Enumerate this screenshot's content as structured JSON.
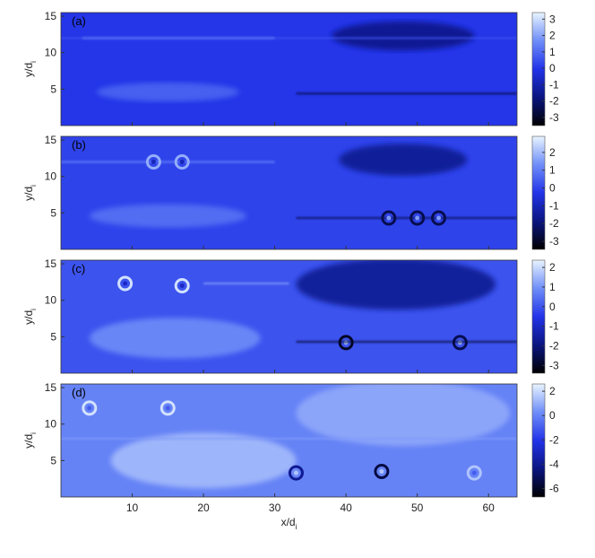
{
  "chart_data": [
    {
      "type": "heatmap",
      "panel_label": "(a)",
      "ylabel": {
        "text": "y/d",
        "sub": "i"
      },
      "xlim": [
        0,
        64
      ],
      "xticks": [
        10,
        20,
        30,
        40,
        50,
        60
      ],
      "ylim": [
        0,
        15.5
      ],
      "yticks": [
        5,
        10,
        15
      ],
      "clim": [
        -3.5,
        3.4
      ],
      "cticks": [
        -3,
        -2,
        -1,
        0,
        1,
        2,
        3
      ],
      "colormap": [
        "#000000",
        "#0a1580",
        "#2233e8",
        "#6f8ef8",
        "#e8f4ff"
      ]
    },
    {
      "type": "heatmap",
      "panel_label": "(b)",
      "ylabel": {
        "text": "y/d",
        "sub": "i"
      },
      "xlim": [
        0,
        64
      ],
      "xticks": [
        10,
        20,
        30,
        40,
        50,
        60
      ],
      "ylim": [
        0,
        15.5
      ],
      "yticks": [
        5,
        10,
        15
      ],
      "clim": [
        -3.45,
        2.9
      ],
      "cticks": [
        -3,
        -2,
        -1,
        0,
        1,
        2
      ],
      "colormap": [
        "#000000",
        "#0a1580",
        "#2233e8",
        "#6f8ef8",
        "#e8f4ff"
      ]
    },
    {
      "type": "heatmap",
      "panel_label": "(c)",
      "ylabel": {
        "text": "y/d",
        "sub": "i"
      },
      "xlim": [
        0,
        64
      ],
      "xticks": [
        10,
        20,
        30,
        40,
        50,
        60
      ],
      "ylim": [
        0,
        15.5
      ],
      "yticks": [
        5,
        10,
        15
      ],
      "clim": [
        -3.4,
        2.37
      ],
      "cticks": [
        -3,
        -2,
        -1,
        0,
        1,
        2
      ],
      "colormap": [
        "#000000",
        "#0a1580",
        "#2233e8",
        "#6f8ef8",
        "#e8f4ff"
      ]
    },
    {
      "type": "heatmap",
      "panel_label": "(d)",
      "ylabel": {
        "text": "y/d",
        "sub": "i"
      },
      "xlabel": {
        "text": "x/d",
        "sub": "i"
      },
      "xlim": [
        0,
        64
      ],
      "xticks": [
        10,
        20,
        30,
        40,
        50,
        60
      ],
      "ylim": [
        0,
        15.5
      ],
      "yticks": [
        5,
        10,
        15
      ],
      "clim": [
        -6.7,
        2.6
      ],
      "cticks": [
        -6,
        -4,
        -2,
        0,
        2
      ],
      "colormap": [
        "#000000",
        "#0a1580",
        "#2233e8",
        "#6f8ef8",
        "#e8f4ff"
      ]
    }
  ]
}
